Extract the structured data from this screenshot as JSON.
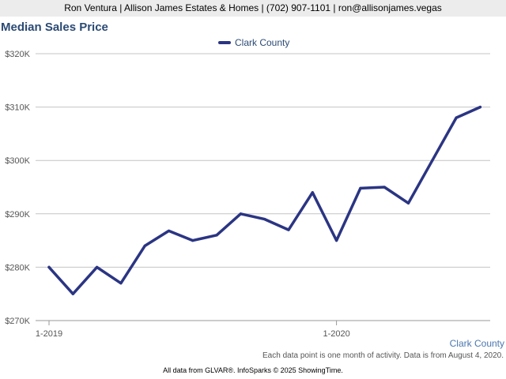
{
  "header": {
    "contact": "Ron Ventura | Allison James Estates & Homes | (702) 907-1101 | ron@allisonjames.vegas"
  },
  "colors": {
    "series": "#2b3583",
    "title": "#2b4a74",
    "grid": "#c4c4c4"
  },
  "chart_data": {
    "type": "line",
    "title": "Median Sales Price",
    "xlabel": "",
    "ylabel": "",
    "ylim": [
      270000,
      320000
    ],
    "yticks": [
      270000,
      280000,
      290000,
      300000,
      310000,
      320000
    ],
    "ytick_labels": [
      "$270K",
      "$280K",
      "$290K",
      "$300K",
      "$310K",
      "$320K"
    ],
    "xticks": [
      "1-2019",
      "1-2020"
    ],
    "legend_position": "top-center",
    "grid": true,
    "x": [
      "1-2019",
      "2-2019",
      "3-2019",
      "4-2019",
      "5-2019",
      "6-2019",
      "7-2019",
      "8-2019",
      "9-2019",
      "10-2019",
      "11-2019",
      "12-2019",
      "1-2020",
      "2-2020",
      "3-2020",
      "4-2020",
      "5-2020",
      "6-2020",
      "7-2020"
    ],
    "series": [
      {
        "name": "Clark County",
        "values": [
          280000,
          275000,
          280000,
          277000,
          284000,
          286800,
          285000,
          286000,
          290000,
          289000,
          287000,
          294000,
          285000,
          294800,
          295000,
          292000,
          300000,
          308000,
          310000
        ]
      }
    ]
  },
  "footer": {
    "series_label": "Clark County",
    "note": "Each data point is one month of activity. Data is from August 4, 2020.",
    "credit": "All data from GLVAR®. InfoSparks © 2025 ShowingTime."
  }
}
